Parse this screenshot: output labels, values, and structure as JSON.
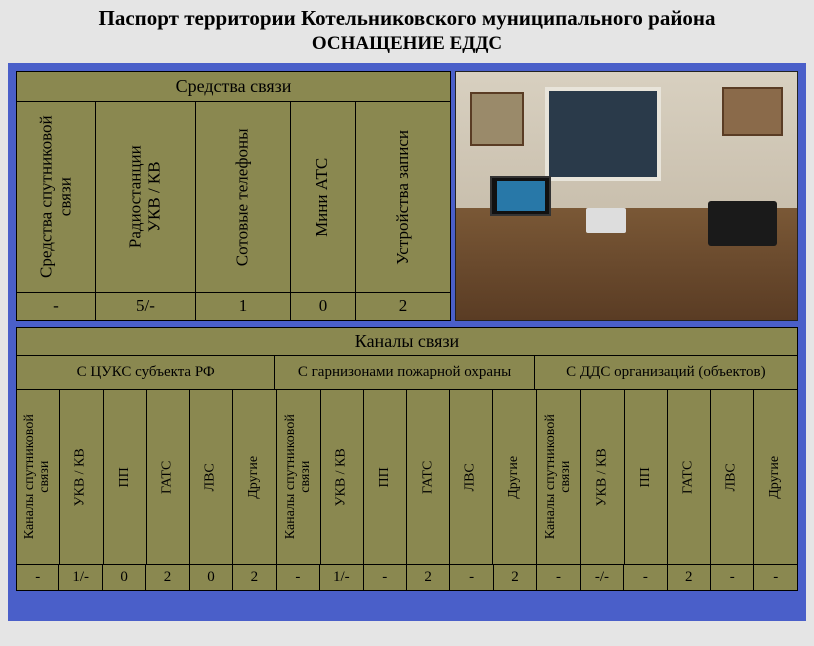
{
  "header": {
    "title": "Паспорт территории Котельниковского муниципального района",
    "subtitle": "ОСНАЩЕНИЕ ЕДДС"
  },
  "colors": {
    "frame": "#4a5fc9",
    "cell_bg": "#8a8850",
    "border": "#000000",
    "page_bg": "#e5e5e5"
  },
  "means": {
    "title": "Средства связи",
    "columns": [
      "Средства спутниковой\nсвязи",
      "Радиостанции\nУКВ / КВ",
      "Сотовые телефоны",
      "Мини АТС",
      "Устройства записи"
    ],
    "values": [
      "-",
      "5/-",
      "1",
      "0",
      "2"
    ]
  },
  "channels": {
    "title": "Каналы связи",
    "groups": [
      "С ЦУКС субъекта РФ",
      "С гарнизонами пожарной охраны",
      "С ДДС организаций (объектов)"
    ],
    "column_labels": [
      "Каналы спутниковой\nсвязи",
      "УКВ / КВ",
      "ПП",
      "ГАТС",
      "ЛВС",
      "Другие",
      "Каналы спутниковой\nсвязи",
      "УКВ / КВ",
      "ПП",
      "ГАТС",
      "ЛВС",
      "Другие",
      "Каналы спутниковой\nсвязи",
      "УКВ / КВ",
      "ПП",
      "ГАТС",
      "ЛВС",
      "Другие"
    ],
    "values": [
      "-",
      "1/-",
      "0",
      "2",
      "0",
      "2",
      "-",
      "1/-",
      "-",
      "2",
      "-",
      "2",
      "-",
      "-/-",
      "-",
      "2",
      "-",
      "-"
    ]
  }
}
